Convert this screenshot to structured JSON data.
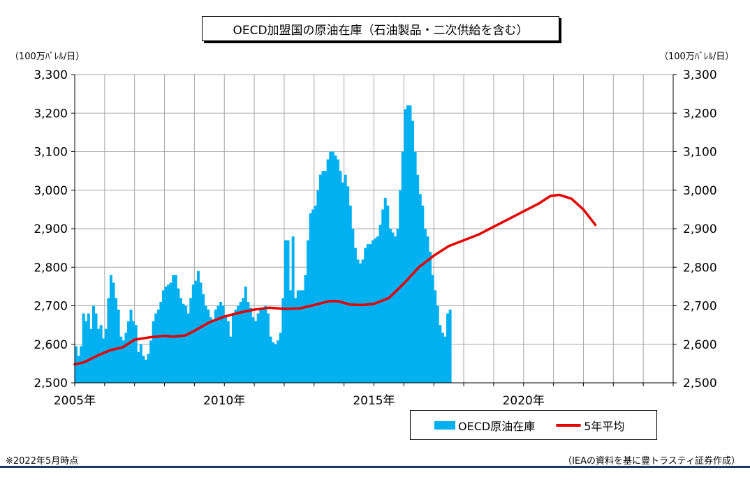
{
  "title": "OECD加盟国の原油在庫（石油製品・二次供給を含む）",
  "unit_left": "（100万ﾊﾞﾚﾙ/日）",
  "unit_right": "（100万ﾊﾞﾚﾙ/日）",
  "legend": {
    "bars": "OECD原油在庫",
    "line": "5年平均"
  },
  "note_left": "※2022年5月時点",
  "note_right": "（IEAの資料を基に豊トラスティ証券作成）",
  "colors": {
    "bars": "#00b0f0",
    "line": "#e60000",
    "grid": "#a6a6a6"
  },
  "chart_data": {
    "type": "bar",
    "title": "OECD加盟国の原油在庫（石油製品・二次供給を含む）",
    "ylabel": "（100万ﾊﾞﾚﾙ/日）",
    "ylim": [
      2500,
      3300
    ],
    "yticks": [
      2500,
      2600,
      2700,
      2800,
      2900,
      3000,
      3100,
      3200,
      3300
    ],
    "ytick_labels": [
      "2,500",
      "2,600",
      "2,700",
      "2,800",
      "2,900",
      "3,000",
      "3,100",
      "3,200",
      "3,300"
    ],
    "xlim": [
      2005.0,
      2025.0
    ],
    "xtick_labels": [
      {
        "x": 2005,
        "label": "2005年"
      },
      {
        "x": 2010,
        "label": "2010年"
      },
      {
        "x": 2015,
        "label": "2015年"
      },
      {
        "x": 2020,
        "label": "2020年"
      }
    ],
    "grid": true,
    "legend_position": "bottom-right",
    "series": [
      {
        "name": "OECD原油在庫",
        "type": "bar",
        "start": "2005-01",
        "frequency": "monthly",
        "values": [
          2595,
          2570,
          2595,
          2680,
          2660,
          2680,
          2640,
          2700,
          2680,
          2640,
          2650,
          2615,
          2640,
          2720,
          2780,
          2760,
          2720,
          2690,
          2620,
          2610,
          2630,
          2660,
          2690,
          2660,
          2650,
          2580,
          2600,
          2570,
          2560,
          2575,
          2610,
          2660,
          2680,
          2690,
          2710,
          2740,
          2750,
          2755,
          2760,
          2780,
          2780,
          2745,
          2720,
          2705,
          2700,
          2680,
          2720,
          2755,
          2765,
          2790,
          2760,
          2730,
          2700,
          2690,
          2670,
          2660,
          2690,
          2700,
          2710,
          2700,
          2675,
          2660,
          2620,
          2680,
          2690,
          2700,
          2710,
          2720,
          2750,
          2710,
          2695,
          2670,
          2660,
          2680,
          2690,
          2690,
          2700,
          2680,
          2620,
          2605,
          2600,
          2610,
          2630,
          2720,
          2870,
          2870,
          2740,
          2880,
          2720,
          2740,
          2740,
          2740,
          2780,
          2870,
          2940,
          2950,
          2960,
          3000,
          3040,
          3050,
          3050,
          3080,
          3100,
          3100,
          3090,
          3080,
          3050,
          3020,
          3040,
          3010,
          2960,
          2900,
          2850,
          2820,
          2810,
          2820,
          2850,
          2860,
          2860,
          2870,
          2875,
          2880,
          2910,
          2950,
          2980,
          2960,
          2900,
          2890,
          2880,
          2900,
          3000,
          3100,
          3210,
          3220,
          3220,
          3180,
          3100,
          3040,
          2990,
          2960,
          2900,
          2880,
          2840,
          2780,
          2740,
          2700,
          2650,
          2630,
          2620,
          2680,
          2690
        ]
      },
      {
        "name": "5年平均",
        "type": "line",
        "points": [
          {
            "x": 2005.0,
            "y": 2548
          },
          {
            "x": 2005.3,
            "y": 2553
          },
          {
            "x": 2005.8,
            "y": 2572
          },
          {
            "x": 2006.2,
            "y": 2585
          },
          {
            "x": 2006.6,
            "y": 2592
          },
          {
            "x": 2007.0,
            "y": 2612
          },
          {
            "x": 2007.5,
            "y": 2618
          },
          {
            "x": 2008.0,
            "y": 2622
          },
          {
            "x": 2008.3,
            "y": 2620
          },
          {
            "x": 2008.7,
            "y": 2623
          },
          {
            "x": 2009.0,
            "y": 2635
          },
          {
            "x": 2009.5,
            "y": 2657
          },
          {
            "x": 2010.0,
            "y": 2672
          },
          {
            "x": 2010.5,
            "y": 2682
          },
          {
            "x": 2011.0,
            "y": 2690
          },
          {
            "x": 2011.5,
            "y": 2695
          },
          {
            "x": 2012.0,
            "y": 2692
          },
          {
            "x": 2012.5,
            "y": 2693
          },
          {
            "x": 2013.0,
            "y": 2702
          },
          {
            "x": 2013.5,
            "y": 2712
          },
          {
            "x": 2013.8,
            "y": 2712
          },
          {
            "x": 2014.2,
            "y": 2703
          },
          {
            "x": 2014.6,
            "y": 2702
          },
          {
            "x": 2015.0,
            "y": 2705
          },
          {
            "x": 2015.5,
            "y": 2720
          },
          {
            "x": 2016.0,
            "y": 2758
          },
          {
            "x": 2016.5,
            "y": 2800
          },
          {
            "x": 2017.0,
            "y": 2830
          },
          {
            "x": 2017.5,
            "y": 2855
          },
          {
            "x": 2018.0,
            "y": 2870
          },
          {
            "x": 2018.5,
            "y": 2885
          },
          {
            "x": 2019.0,
            "y": 2905
          },
          {
            "x": 2019.5,
            "y": 2925
          },
          {
            "x": 2020.0,
            "y": 2945
          },
          {
            "x": 2020.5,
            "y": 2965
          },
          {
            "x": 2020.9,
            "y": 2985
          },
          {
            "x": 2021.2,
            "y": 2988
          },
          {
            "x": 2021.6,
            "y": 2978
          },
          {
            "x": 2022.0,
            "y": 2950
          },
          {
            "x": 2022.4,
            "y": 2910
          }
        ]
      }
    ]
  }
}
